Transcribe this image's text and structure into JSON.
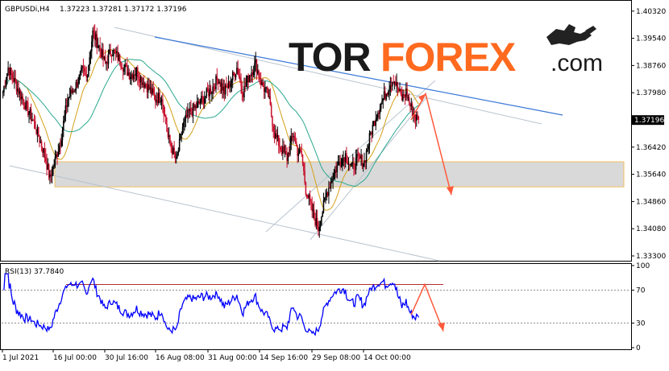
{
  "header": {
    "symbol": "GBPUSDi,H4",
    "ohlc": "1.37223 1.37281 1.37172 1.37196"
  },
  "logo": {
    "part1": "TOR",
    "part2": "FOREX",
    "part3": ".com",
    "icon": "bull-bear-icon"
  },
  "colors": {
    "bull": "#000000",
    "bear": "#c8102e",
    "ma_fast": "#d4a017",
    "ma_slow": "#2aa88f",
    "channel": "#b9c3cf",
    "trend": "#3a78d8",
    "zone_fill": "#d9d9d9",
    "zone_border": "#f0c060",
    "arrow": "#ff5a3c",
    "rsi_line": "#0000ff",
    "rsi_level": "#b03030"
  },
  "chart_data": [
    {
      "type": "candlestick",
      "price_label": "1.37196",
      "ylim": [
        1.333,
        1.405
      ],
      "yticks": [
        "1.40320",
        "1.39540",
        "1.38760",
        "1.37980",
        "1.37196",
        "1.36420",
        "1.35640",
        "1.34860",
        "1.34080",
        "1.33300"
      ],
      "xticks": [
        "1 Jul 2021",
        "16 Jul 00:00",
        "30 Jul 16:00",
        "16 Aug 08:00",
        "31 Aug 00:00",
        "14 Sep 16:00",
        "29 Sep 08:00",
        "14 Oct 00:00"
      ],
      "support_zone": [
        1.3528,
        1.36
      ],
      "forecast": [
        1.372,
        1.3795,
        1.3505
      ],
      "close_anchors": [
        [
          0,
          1.38
        ],
        [
          5,
          1.387
        ],
        [
          14,
          1.381
        ],
        [
          30,
          1.371
        ],
        [
          40,
          1.362
        ],
        [
          45,
          1.355
        ],
        [
          55,
          1.366
        ],
        [
          62,
          1.378
        ],
        [
          70,
          1.382
        ],
        [
          76,
          1.386
        ],
        [
          80,
          1.384
        ],
        [
          86,
          1.397
        ],
        [
          92,
          1.393
        ],
        [
          98,
          1.388
        ],
        [
          104,
          1.392
        ],
        [
          110,
          1.39
        ],
        [
          116,
          1.387
        ],
        [
          122,
          1.385
        ],
        [
          128,
          1.386
        ],
        [
          134,
          1.383
        ],
        [
          140,
          1.381
        ],
        [
          146,
          1.378
        ],
        [
          152,
          1.379
        ],
        [
          158,
          1.367
        ],
        [
          166,
          1.36
        ],
        [
          172,
          1.37
        ],
        [
          178,
          1.374
        ],
        [
          186,
          1.376
        ],
        [
          194,
          1.379
        ],
        [
          200,
          1.381
        ],
        [
          206,
          1.384
        ],
        [
          212,
          1.38
        ],
        [
          218,
          1.383
        ],
        [
          224,
          1.387
        ],
        [
          230,
          1.38
        ],
        [
          236,
          1.385
        ],
        [
          242,
          1.388
        ],
        [
          248,
          1.382
        ],
        [
          254,
          1.379
        ],
        [
          260,
          1.368
        ],
        [
          266,
          1.364
        ],
        [
          272,
          1.361
        ],
        [
          278,
          1.368
        ],
        [
          282,
          1.363
        ],
        [
          286,
          1.362
        ],
        [
          290,
          1.352
        ],
        [
          294,
          1.348
        ],
        [
          298,
          1.344
        ],
        [
          302,
          1.341
        ],
        [
          306,
          1.346
        ],
        [
          310,
          1.351
        ],
        [
          316,
          1.356
        ],
        [
          322,
          1.36
        ],
        [
          328,
          1.362
        ],
        [
          334,
          1.358
        ],
        [
          340,
          1.361
        ],
        [
          346,
          1.36
        ],
        [
          352,
          1.368
        ],
        [
          358,
          1.374
        ],
        [
          364,
          1.378
        ],
        [
          370,
          1.382
        ],
        [
          374,
          1.384
        ],
        [
          378,
          1.381
        ],
        [
          382,
          1.378
        ],
        [
          386,
          1.38
        ],
        [
          390,
          1.376
        ],
        [
          394,
          1.373
        ],
        [
          398,
          1.372
        ]
      ]
    },
    {
      "type": "line",
      "title": "RSI(13) 37.7840",
      "ylim": [
        0,
        100
      ],
      "yticks": [
        "100",
        "70",
        "30",
        "0"
      ],
      "levels": [
        70,
        30
      ],
      "forecast": [
        40,
        77,
        20
      ]
    }
  ]
}
